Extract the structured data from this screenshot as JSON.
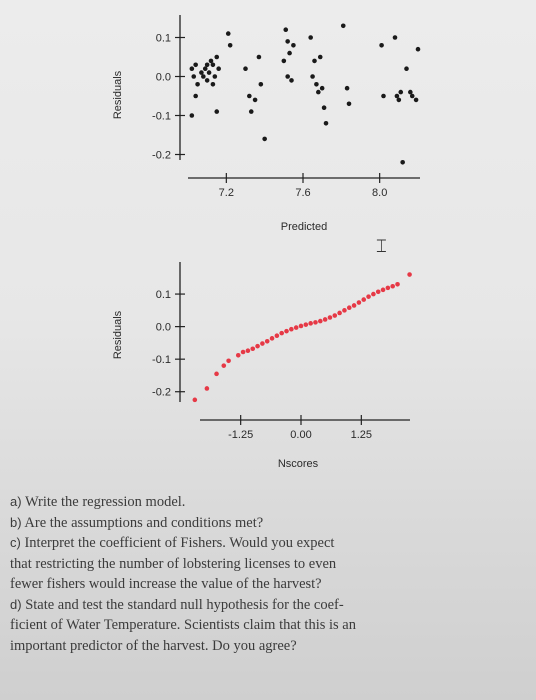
{
  "chart_data": [
    {
      "type": "scatter",
      "title": "",
      "xlabel": "Predicted",
      "ylabel": "Residuals",
      "xticks": [
        "7.2",
        "7.6",
        "8.0"
      ],
      "yticks": [
        "0.1",
        "0.0",
        "-0.1",
        "-0.2"
      ],
      "xlim": [
        7.0,
        8.2
      ],
      "ylim": [
        -0.25,
        0.15
      ],
      "grid": false,
      "point_color": "#1a1a1a",
      "points": [
        [
          7.02,
          0.02
        ],
        [
          7.03,
          0.0
        ],
        [
          7.04,
          0.03
        ],
        [
          7.05,
          -0.02
        ],
        [
          7.07,
          0.01
        ],
        [
          7.08,
          0.0
        ],
        [
          7.09,
          0.02
        ],
        [
          7.1,
          -0.01
        ],
        [
          7.1,
          0.03
        ],
        [
          7.11,
          0.01
        ],
        [
          7.12,
          0.04
        ],
        [
          7.13,
          -0.02
        ],
        [
          7.13,
          0.03
        ],
        [
          7.14,
          0.0
        ],
        [
          7.15,
          0.05
        ],
        [
          7.16,
          0.02
        ],
        [
          7.04,
          -0.05
        ],
        [
          7.02,
          -0.1
        ],
        [
          7.15,
          -0.09
        ],
        [
          7.21,
          0.11
        ],
        [
          7.22,
          0.08
        ],
        [
          7.3,
          0.02
        ],
        [
          7.32,
          -0.05
        ],
        [
          7.33,
          -0.09
        ],
        [
          7.35,
          -0.06
        ],
        [
          7.37,
          0.05
        ],
        [
          7.38,
          -0.02
        ],
        [
          7.4,
          -0.16
        ],
        [
          7.5,
          0.04
        ],
        [
          7.51,
          0.12
        ],
        [
          7.52,
          0.09
        ],
        [
          7.52,
          0.0
        ],
        [
          7.53,
          0.06
        ],
        [
          7.54,
          -0.01
        ],
        [
          7.55,
          0.08
        ],
        [
          7.64,
          0.1
        ],
        [
          7.65,
          0.0
        ],
        [
          7.66,
          0.04
        ],
        [
          7.67,
          -0.02
        ],
        [
          7.68,
          -0.04
        ],
        [
          7.69,
          0.05
        ],
        [
          7.7,
          -0.03
        ],
        [
          7.71,
          -0.08
        ],
        [
          7.72,
          -0.12
        ],
        [
          7.81,
          0.13
        ],
        [
          7.83,
          -0.03
        ],
        [
          7.84,
          -0.07
        ],
        [
          8.01,
          0.08
        ],
        [
          8.02,
          -0.05
        ],
        [
          8.08,
          0.1
        ],
        [
          8.09,
          -0.05
        ],
        [
          8.1,
          -0.06
        ],
        [
          8.11,
          -0.04
        ],
        [
          8.12,
          -0.22
        ],
        [
          8.14,
          0.02
        ],
        [
          8.16,
          -0.04
        ],
        [
          8.17,
          -0.05
        ],
        [
          8.19,
          -0.06
        ],
        [
          8.2,
          0.07
        ]
      ]
    },
    {
      "type": "scatter",
      "title": "",
      "xlabel": "Nscores",
      "ylabel": "Residuals",
      "xticks": [
        "-1.25",
        "0.00",
        "1.25"
      ],
      "yticks": [
        "0.1",
        "0.0",
        "-0.1",
        "-0.2"
      ],
      "xlim": [
        -2.3,
        2.3
      ],
      "ylim": [
        -0.25,
        0.22
      ],
      "grid": false,
      "point_color": "#e63946",
      "points": [
        [
          -2.2,
          -0.225
        ],
        [
          -1.95,
          -0.19
        ],
        [
          -1.75,
          -0.145
        ],
        [
          -1.6,
          -0.12
        ],
        [
          -1.5,
          -0.105
        ],
        [
          -1.3,
          -0.088
        ],
        [
          -1.2,
          -0.078
        ],
        [
          -1.1,
          -0.074
        ],
        [
          -1.0,
          -0.068
        ],
        [
          -0.9,
          -0.06
        ],
        [
          -0.8,
          -0.052
        ],
        [
          -0.7,
          -0.045
        ],
        [
          -0.6,
          -0.036
        ],
        [
          -0.5,
          -0.028
        ],
        [
          -0.4,
          -0.02
        ],
        [
          -0.3,
          -0.014
        ],
        [
          -0.2,
          -0.008
        ],
        [
          -0.1,
          -0.003
        ],
        [
          0.0,
          0.002
        ],
        [
          0.1,
          0.006
        ],
        [
          0.2,
          0.01
        ],
        [
          0.3,
          0.013
        ],
        [
          0.4,
          0.017
        ],
        [
          0.5,
          0.022
        ],
        [
          0.6,
          0.028
        ],
        [
          0.7,
          0.034
        ],
        [
          0.8,
          0.042
        ],
        [
          0.9,
          0.05
        ],
        [
          1.0,
          0.058
        ],
        [
          1.1,
          0.065
        ],
        [
          1.2,
          0.074
        ],
        [
          1.3,
          0.083
        ],
        [
          1.4,
          0.092
        ],
        [
          1.5,
          0.1
        ],
        [
          1.6,
          0.107
        ],
        [
          1.7,
          0.113
        ],
        [
          1.8,
          0.119
        ],
        [
          1.9,
          0.124
        ],
        [
          2.0,
          0.13
        ],
        [
          2.25,
          0.16
        ]
      ]
    }
  ],
  "questions": [
    {
      "label": "a)",
      "text": "Write the regression model."
    },
    {
      "label": "b)",
      "text": "Are the assumptions and conditions met?"
    },
    {
      "label": "c)",
      "text": "Interpret the coefficient of Fishers. Would you expect"
    },
    {
      "label": "",
      "text": "that restricting the number of lobstering licenses to even"
    },
    {
      "label": "",
      "text": "fewer fishers would increase the value of the harvest?"
    },
    {
      "label": "d)",
      "text": "State and test the standard null hypothesis for the coef-"
    },
    {
      "label": "",
      "text": "ficient of Water Temperature. Scientists claim that this is an"
    },
    {
      "label": "",
      "text": "important predictor of the harvest. Do you agree?"
    }
  ],
  "cursor_icon": "text-cursor-icon"
}
